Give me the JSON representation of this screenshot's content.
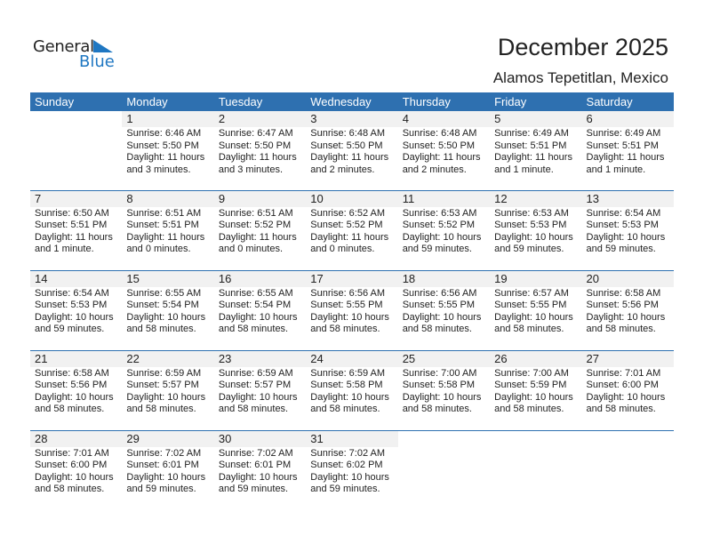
{
  "logo": {
    "general": "General",
    "blue": "Blue",
    "accent": "#1f77c2"
  },
  "title": "December 2025",
  "location": "Alamos Tepetitlan, Mexico",
  "header_color": "#2e70b0",
  "days": [
    "Sunday",
    "Monday",
    "Tuesday",
    "Wednesday",
    "Thursday",
    "Friday",
    "Saturday"
  ],
  "weeks": [
    [
      null,
      {
        "day": "1",
        "sunrise": "Sunrise: 6:46 AM",
        "sunset": "Sunset: 5:50 PM",
        "daylight1": "Daylight: 11 hours",
        "daylight2": "and 3 minutes."
      },
      {
        "day": "2",
        "sunrise": "Sunrise: 6:47 AM",
        "sunset": "Sunset: 5:50 PM",
        "daylight1": "Daylight: 11 hours",
        "daylight2": "and 3 minutes."
      },
      {
        "day": "3",
        "sunrise": "Sunrise: 6:48 AM",
        "sunset": "Sunset: 5:50 PM",
        "daylight1": "Daylight: 11 hours",
        "daylight2": "and 2 minutes."
      },
      {
        "day": "4",
        "sunrise": "Sunrise: 6:48 AM",
        "sunset": "Sunset: 5:50 PM",
        "daylight1": "Daylight: 11 hours",
        "daylight2": "and 2 minutes."
      },
      {
        "day": "5",
        "sunrise": "Sunrise: 6:49 AM",
        "sunset": "Sunset: 5:51 PM",
        "daylight1": "Daylight: 11 hours",
        "daylight2": "and 1 minute."
      },
      {
        "day": "6",
        "sunrise": "Sunrise: 6:49 AM",
        "sunset": "Sunset: 5:51 PM",
        "daylight1": "Daylight: 11 hours",
        "daylight2": "and 1 minute."
      }
    ],
    [
      {
        "day": "7",
        "sunrise": "Sunrise: 6:50 AM",
        "sunset": "Sunset: 5:51 PM",
        "daylight1": "Daylight: 11 hours",
        "daylight2": "and 1 minute."
      },
      {
        "day": "8",
        "sunrise": "Sunrise: 6:51 AM",
        "sunset": "Sunset: 5:51 PM",
        "daylight1": "Daylight: 11 hours",
        "daylight2": "and 0 minutes."
      },
      {
        "day": "9",
        "sunrise": "Sunrise: 6:51 AM",
        "sunset": "Sunset: 5:52 PM",
        "daylight1": "Daylight: 11 hours",
        "daylight2": "and 0 minutes."
      },
      {
        "day": "10",
        "sunrise": "Sunrise: 6:52 AM",
        "sunset": "Sunset: 5:52 PM",
        "daylight1": "Daylight: 11 hours",
        "daylight2": "and 0 minutes."
      },
      {
        "day": "11",
        "sunrise": "Sunrise: 6:53 AM",
        "sunset": "Sunset: 5:52 PM",
        "daylight1": "Daylight: 10 hours",
        "daylight2": "and 59 minutes."
      },
      {
        "day": "12",
        "sunrise": "Sunrise: 6:53 AM",
        "sunset": "Sunset: 5:53 PM",
        "daylight1": "Daylight: 10 hours",
        "daylight2": "and 59 minutes."
      },
      {
        "day": "13",
        "sunrise": "Sunrise: 6:54 AM",
        "sunset": "Sunset: 5:53 PM",
        "daylight1": "Daylight: 10 hours",
        "daylight2": "and 59 minutes."
      }
    ],
    [
      {
        "day": "14",
        "sunrise": "Sunrise: 6:54 AM",
        "sunset": "Sunset: 5:53 PM",
        "daylight1": "Daylight: 10 hours",
        "daylight2": "and 59 minutes."
      },
      {
        "day": "15",
        "sunrise": "Sunrise: 6:55 AM",
        "sunset": "Sunset: 5:54 PM",
        "daylight1": "Daylight: 10 hours",
        "daylight2": "and 58 minutes."
      },
      {
        "day": "16",
        "sunrise": "Sunrise: 6:55 AM",
        "sunset": "Sunset: 5:54 PM",
        "daylight1": "Daylight: 10 hours",
        "daylight2": "and 58 minutes."
      },
      {
        "day": "17",
        "sunrise": "Sunrise: 6:56 AM",
        "sunset": "Sunset: 5:55 PM",
        "daylight1": "Daylight: 10 hours",
        "daylight2": "and 58 minutes."
      },
      {
        "day": "18",
        "sunrise": "Sunrise: 6:56 AM",
        "sunset": "Sunset: 5:55 PM",
        "daylight1": "Daylight: 10 hours",
        "daylight2": "and 58 minutes."
      },
      {
        "day": "19",
        "sunrise": "Sunrise: 6:57 AM",
        "sunset": "Sunset: 5:55 PM",
        "daylight1": "Daylight: 10 hours",
        "daylight2": "and 58 minutes."
      },
      {
        "day": "20",
        "sunrise": "Sunrise: 6:58 AM",
        "sunset": "Sunset: 5:56 PM",
        "daylight1": "Daylight: 10 hours",
        "daylight2": "and 58 minutes."
      }
    ],
    [
      {
        "day": "21",
        "sunrise": "Sunrise: 6:58 AM",
        "sunset": "Sunset: 5:56 PM",
        "daylight1": "Daylight: 10 hours",
        "daylight2": "and 58 minutes."
      },
      {
        "day": "22",
        "sunrise": "Sunrise: 6:59 AM",
        "sunset": "Sunset: 5:57 PM",
        "daylight1": "Daylight: 10 hours",
        "daylight2": "and 58 minutes."
      },
      {
        "day": "23",
        "sunrise": "Sunrise: 6:59 AM",
        "sunset": "Sunset: 5:57 PM",
        "daylight1": "Daylight: 10 hours",
        "daylight2": "and 58 minutes."
      },
      {
        "day": "24",
        "sunrise": "Sunrise: 6:59 AM",
        "sunset": "Sunset: 5:58 PM",
        "daylight1": "Daylight: 10 hours",
        "daylight2": "and 58 minutes."
      },
      {
        "day": "25",
        "sunrise": "Sunrise: 7:00 AM",
        "sunset": "Sunset: 5:58 PM",
        "daylight1": "Daylight: 10 hours",
        "daylight2": "and 58 minutes."
      },
      {
        "day": "26",
        "sunrise": "Sunrise: 7:00 AM",
        "sunset": "Sunset: 5:59 PM",
        "daylight1": "Daylight: 10 hours",
        "daylight2": "and 58 minutes."
      },
      {
        "day": "27",
        "sunrise": "Sunrise: 7:01 AM",
        "sunset": "Sunset: 6:00 PM",
        "daylight1": "Daylight: 10 hours",
        "daylight2": "and 58 minutes."
      }
    ],
    [
      {
        "day": "28",
        "sunrise": "Sunrise: 7:01 AM",
        "sunset": "Sunset: 6:00 PM",
        "daylight1": "Daylight: 10 hours",
        "daylight2": "and 58 minutes."
      },
      {
        "day": "29",
        "sunrise": "Sunrise: 7:02 AM",
        "sunset": "Sunset: 6:01 PM",
        "daylight1": "Daylight: 10 hours",
        "daylight2": "and 59 minutes."
      },
      {
        "day": "30",
        "sunrise": "Sunrise: 7:02 AM",
        "sunset": "Sunset: 6:01 PM",
        "daylight1": "Daylight: 10 hours",
        "daylight2": "and 59 minutes."
      },
      {
        "day": "31",
        "sunrise": "Sunrise: 7:02 AM",
        "sunset": "Sunset: 6:02 PM",
        "daylight1": "Daylight: 10 hours",
        "daylight2": "and 59 minutes."
      },
      null,
      null,
      null
    ]
  ]
}
